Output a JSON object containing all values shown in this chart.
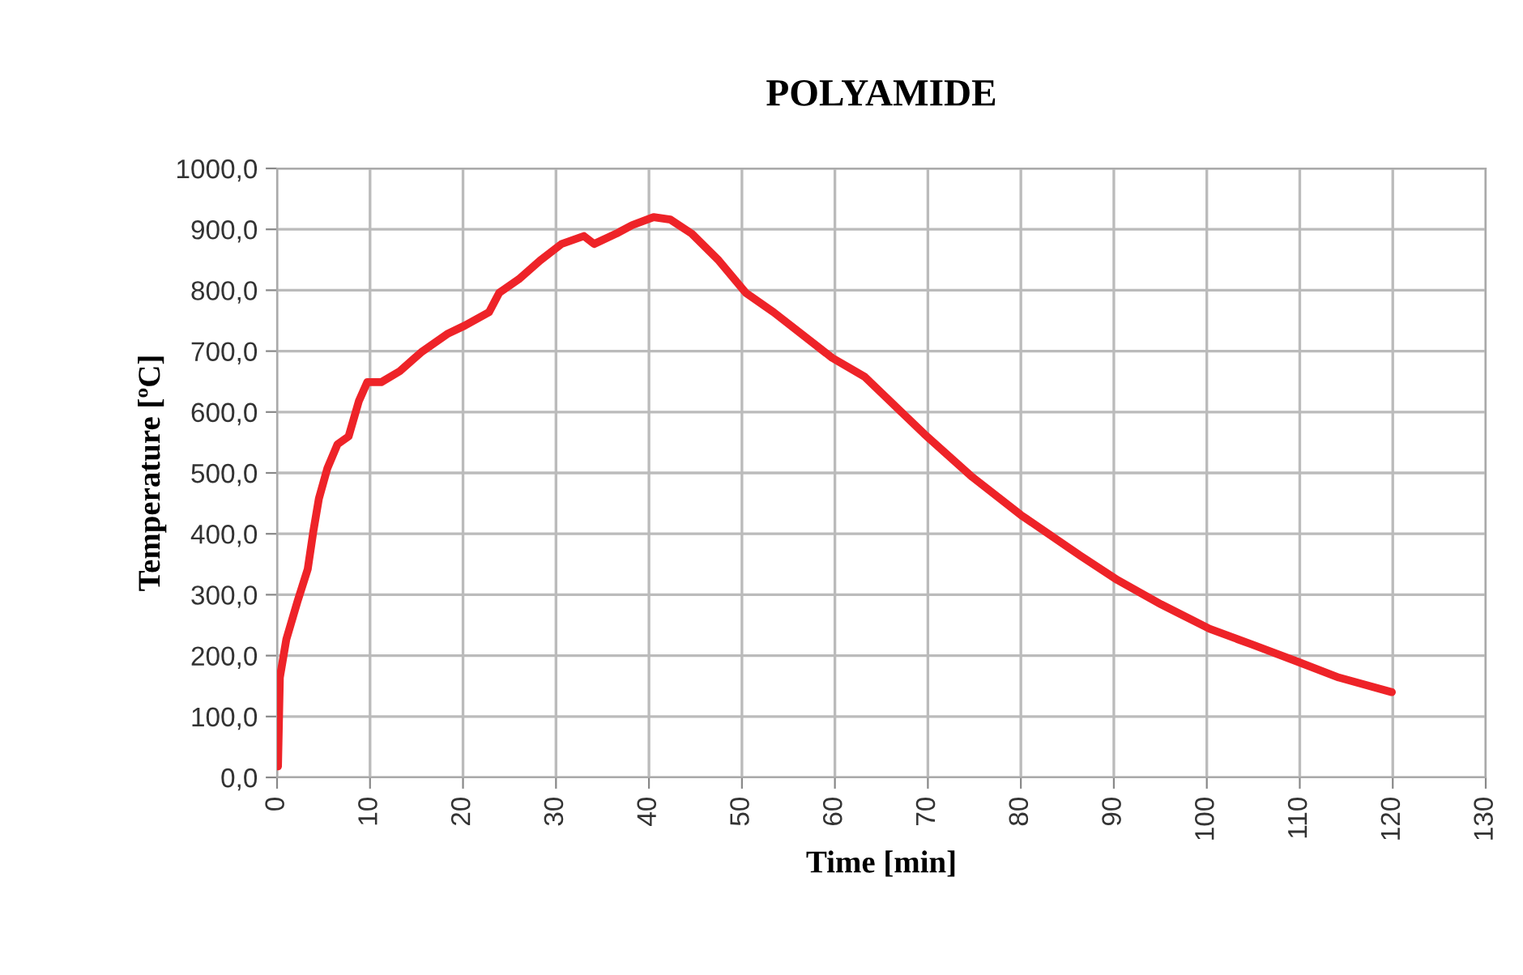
{
  "chart_data": {
    "type": "line",
    "title": "POLYAMIDE",
    "xlabel": "Time [min]",
    "ylabel": "Temperature [ºC]",
    "xlim": [
      0,
      130
    ],
    "xticks": [
      0,
      10,
      20,
      30,
      40,
      50,
      60,
      70,
      80,
      90,
      100,
      110,
      120,
      130
    ],
    "ylim": [
      0,
      1000
    ],
    "yticks": [
      {
        "value": 0,
        "label": "0,0"
      },
      {
        "value": 100,
        "label": "100,0"
      },
      {
        "value": 200,
        "label": "200,0"
      },
      {
        "value": 300,
        "label": "300,0"
      },
      {
        "value": 400,
        "label": "400,0"
      },
      {
        "value": 500,
        "label": "500,0"
      },
      {
        "value": 600,
        "label": "600,0"
      },
      {
        "value": 700,
        "label": "700,0"
      },
      {
        "value": 800,
        "label": "800,0"
      },
      {
        "value": 900,
        "label": "900,0"
      },
      {
        "value": 1000,
        "label": "1000,0"
      }
    ],
    "grid": true,
    "legend": false,
    "marker": "none",
    "line_style": "solid",
    "series": [
      {
        "color": "#ee2328",
        "x": [
          0.1,
          0.3,
          1.0,
          2.2,
          3.3,
          3.9,
          4.5,
          5.4,
          6.5,
          7.7,
          8.8,
          9.7,
          11.2,
          13.2,
          15.5,
          18.4,
          20.2,
          22.8,
          23.9,
          26.0,
          28.3,
          30.6,
          33.0,
          34.1,
          36.5,
          38.2,
          40.5,
          42.3,
          44.6,
          47.5,
          50.4,
          53.4,
          59.7,
          63.2,
          69.6,
          74.8,
          80.0,
          86.4,
          90.4,
          95.1,
          100.3,
          104.9,
          109.6,
          114.2,
          119.9
        ],
        "values": [
          18,
          164,
          227,
          289,
          342,
          404,
          458,
          507,
          547,
          560,
          618,
          649,
          649,
          667,
          698,
          729,
          742,
          764,
          796,
          818,
          849,
          876,
          889,
          876,
          893,
          907,
          920,
          916,
          893,
          849,
          796,
          764,
          689,
          658,
          564,
          493,
          431,
          364,
          324,
          284,
          244,
          218,
          191,
          164,
          140
        ]
      }
    ]
  }
}
